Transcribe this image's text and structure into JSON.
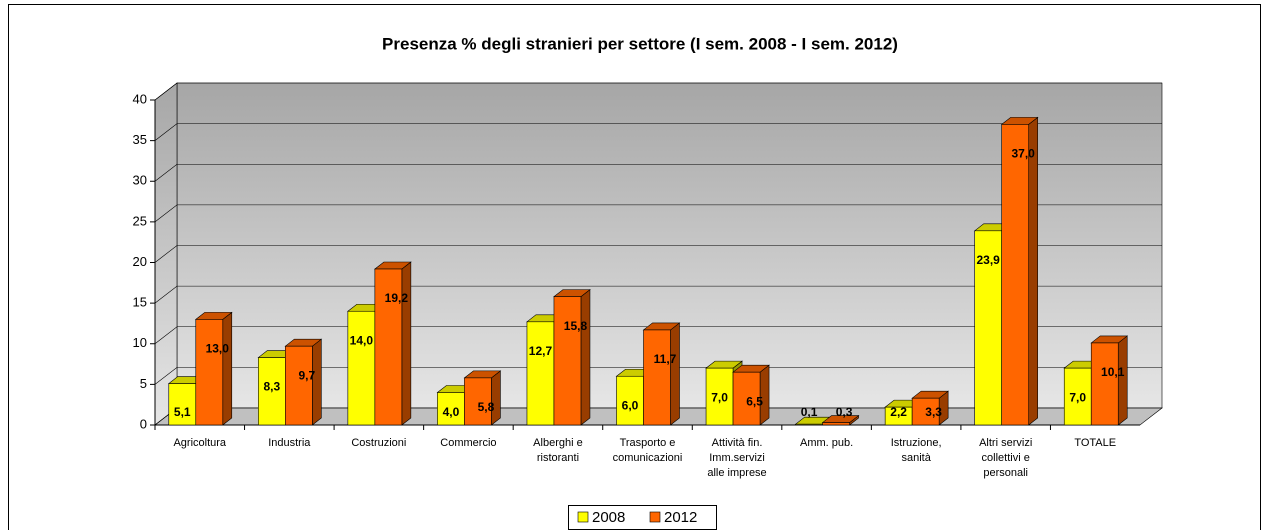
{
  "chart_data": {
    "type": "bar3d",
    "title": "Presenza % degli stranieri per settore (I sem. 2008 - I sem. 2012)",
    "categories": [
      [
        "Agricoltura"
      ],
      [
        "Industria"
      ],
      [
        "Costruzioni"
      ],
      [
        "Commercio"
      ],
      [
        "Alberghi e",
        "ristoranti"
      ],
      [
        "Trasporto e",
        "comunicazioni"
      ],
      [
        "Attività fin.",
        "Imm.servizi",
        "alle imprese"
      ],
      [
        "Amm. pub."
      ],
      [
        "Istruzione,",
        "sanità"
      ],
      [
        "Altri servizi",
        "collettivi e",
        "personali"
      ],
      [
        "TOTALE"
      ]
    ],
    "series": [
      {
        "name": "2008",
        "color": "#ffff00",
        "values": [
          5.1,
          8.3,
          14.0,
          4.0,
          12.7,
          6.0,
          7.0,
          0.1,
          2.2,
          23.9,
          7.0
        ],
        "value_labels": [
          "5,1",
          "8,3",
          "14,0",
          "4,0",
          "12,7",
          "6,0",
          "7,0",
          "0,1",
          "2,2",
          "23,9",
          "7,0"
        ]
      },
      {
        "name": "2012",
        "color": "#ff6600",
        "values": [
          13.0,
          9.7,
          19.2,
          5.8,
          15.8,
          11.7,
          6.5,
          0.3,
          3.3,
          37.0,
          10.1
        ],
        "value_labels": [
          "13,0",
          "9,7",
          "19,2",
          "5,8",
          "15,8",
          "11,7",
          "6,5",
          "0,3",
          "3,3",
          "37,0",
          "10,1"
        ]
      }
    ],
    "ylim": [
      0,
      40
    ],
    "yticks": [
      0,
      5,
      10,
      15,
      20,
      25,
      30,
      35,
      40
    ],
    "grid": true,
    "legend": "bottom"
  }
}
